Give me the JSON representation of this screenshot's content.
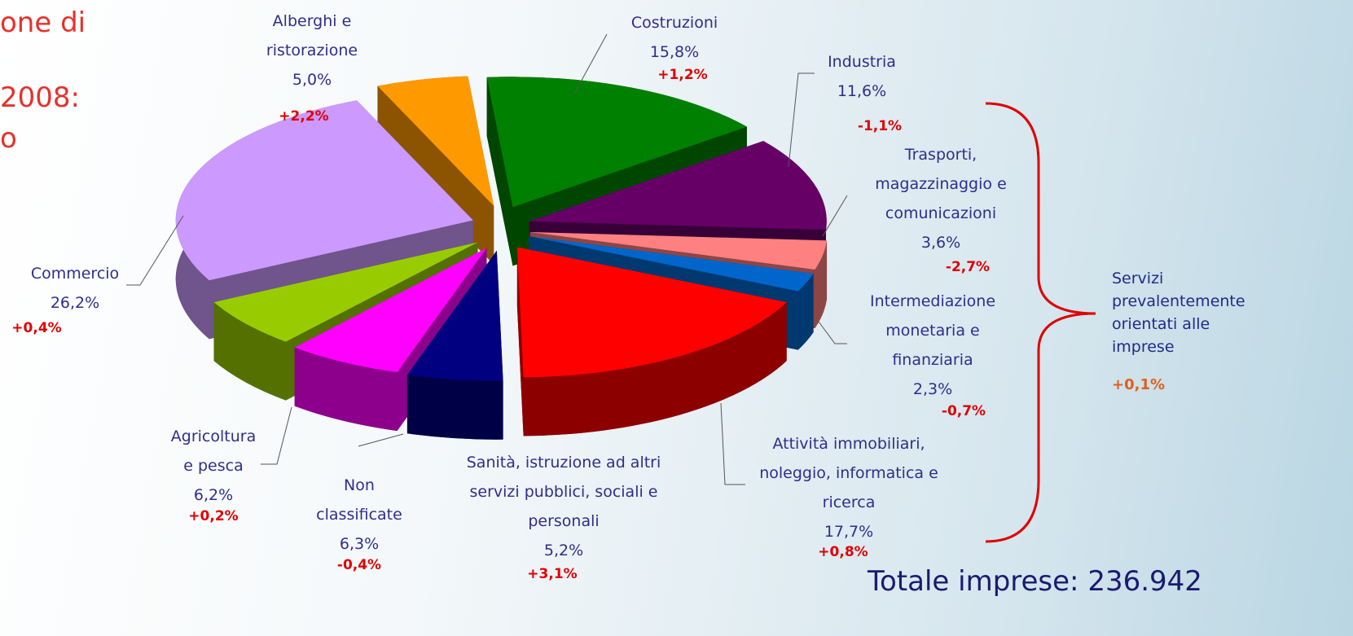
{
  "chart_data": {
    "type": "pie",
    "title_fragments": [
      "one di",
      "2008:",
      "o"
    ],
    "categories": [
      "Costruzioni",
      "Industria",
      "Trasporti,\nmagazzinaggio e\ncomunicazioni",
      "Intermediazione\nmonetaria e\nfinanziaria",
      "Attività immobiliari,\nnoleggio, informatica e\nricerca",
      "Sanità, istruzione ad altri\nservizi pubblici, sociali e\npersonali",
      "Non\nclassificate",
      "Agricoltura\ne pesca",
      "Commercio",
      "Alberghi e\nristorazione"
    ],
    "values": [
      15.8,
      11.6,
      3.6,
      2.3,
      17.7,
      5.2,
      6.3,
      6.2,
      26.2,
      5.0
    ],
    "value_labels": [
      "15,8%",
      "11,6%",
      "3,6%",
      "2,3%",
      "17,7%",
      "5,2%",
      "6,3%",
      "6,2%",
      "26,2%",
      "5,0%"
    ],
    "changes": [
      "+1,2%",
      "-1,1%",
      "-2,7%",
      "-0,7%",
      "+0,8%",
      "+3,1%",
      "-0,4%",
      "+0,2%",
      "+0,4%",
      "+2,2%"
    ],
    "colors": [
      "#008000",
      "#660066",
      "#ff8080",
      "#0066cc",
      "#ff0000",
      "#000080",
      "#ff00ff",
      "#99cc00",
      "#cc99ff",
      "#ff9900"
    ],
    "group_label": "Servizi\nprevalentemente\norientati alle\nimprese",
    "group_change": "+0,1%",
    "total": "Totale imprese: 236.942"
  }
}
